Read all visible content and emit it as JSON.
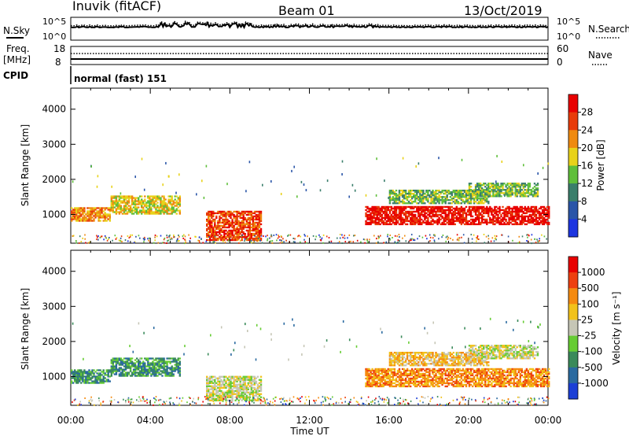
{
  "header": {
    "station": "Inuvik (fitACF)",
    "beam": "Beam 01",
    "date": "13/Oct/2019"
  },
  "strip": {
    "left_nsky": "N.Sky",
    "left_freq_line1": "Freq.",
    "left_freq_line2": "[MHz]",
    "left_cpid": "CPID",
    "right_nsearch": "N.Search",
    "right_nave": "Nave",
    "noise_tick_top": "10^5",
    "noise_tick_bottom": "10^0",
    "freq_tick_top": "18",
    "freq_tick_bottom": "8",
    "nave_tick_top": "60",
    "nave_tick_bottom": "0",
    "cpid_text": "normal (fast) 151"
  },
  "chart_data": [
    {
      "type": "heatmap",
      "panel": "power",
      "ylabel": "Slant Range [km]",
      "ylim": [
        180,
        4600
      ],
      "xlim": [
        0,
        24
      ],
      "yticks": [
        1000,
        2000,
        3000,
        4000
      ],
      "colorbar": {
        "label": "Power [dB]",
        "ticks": [
          4,
          8,
          12,
          16,
          20,
          24,
          28
        ],
        "colors": [
          "#1d35e0",
          "#2a55a8",
          "#3a7e6b",
          "#5fbf3a",
          "#e8d21a",
          "#ef8a10",
          "#e83c0a",
          "#e80000"
        ]
      },
      "regions": [
        {
          "t0": 0.0,
          "t1": 2.0,
          "r0": 800,
          "r1": 1200,
          "level": 5
        },
        {
          "t0": 2.0,
          "t1": 5.5,
          "r0": 1000,
          "r1": 1500,
          "level": 4
        },
        {
          "t0": 6.8,
          "t1": 9.6,
          "r0": 250,
          "r1": 1100,
          "level": 6
        },
        {
          "t0": 14.8,
          "t1": 24.0,
          "r0": 700,
          "r1": 1200,
          "level": 7
        },
        {
          "t0": 16.0,
          "t1": 21.0,
          "r0": 1300,
          "r1": 1700,
          "level": 3
        },
        {
          "t0": 20.0,
          "t1": 23.5,
          "r0": 1500,
          "r1": 1900,
          "level": 3
        }
      ]
    },
    {
      "type": "heatmap",
      "panel": "velocity",
      "ylabel": "Slant Range [km]",
      "xlabel": "Time UT",
      "ylim": [
        180,
        4600
      ],
      "xlim": [
        0,
        24
      ],
      "yticks": [
        1000,
        2000,
        3000,
        4000
      ],
      "xticks": [
        "00:00",
        "04:00",
        "08:00",
        "12:00",
        "16:00",
        "20:00",
        "00:00"
      ],
      "colorbar": {
        "label": "Velocity [m s⁻¹]",
        "ticks": [
          "1000",
          "500",
          "100",
          "25",
          "-25",
          "-100",
          "-500",
          "-1000"
        ],
        "colors": [
          "#1c3fd6",
          "#2a6aa0",
          "#3a8a5a",
          "#66cc33",
          "#c6c6b6",
          "#f2c21a",
          "#f58a10",
          "#ee4010",
          "#e80000"
        ]
      },
      "regions": [
        {
          "t0": 0.0,
          "t1": 2.0,
          "r0": 800,
          "r1": 1200,
          "level": 2
        },
        {
          "t0": 2.0,
          "t1": 5.5,
          "r0": 1000,
          "r1": 1500,
          "level": 2
        },
        {
          "t0": 6.8,
          "t1": 9.6,
          "r0": 300,
          "r1": 1000,
          "level": 4
        },
        {
          "t0": 14.8,
          "t1": 24.0,
          "r0": 700,
          "r1": 1200,
          "level": 6
        },
        {
          "t0": 16.0,
          "t1": 21.0,
          "r0": 1300,
          "r1": 1700,
          "level": 5
        },
        {
          "t0": 20.0,
          "t1": 23.5,
          "r0": 1500,
          "r1": 1900,
          "level": 4
        }
      ]
    }
  ]
}
